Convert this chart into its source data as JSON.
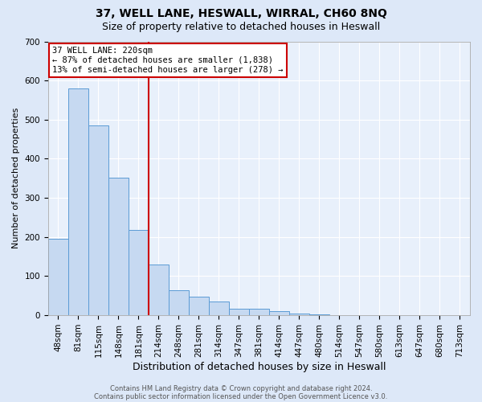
{
  "title": "37, WELL LANE, HESWALL, WIRRAL, CH60 8NQ",
  "subtitle": "Size of property relative to detached houses in Heswall",
  "xlabel": "Distribution of detached houses by size in Heswall",
  "ylabel": "Number of detached properties",
  "categories": [
    "48sqm",
    "81sqm",
    "115sqm",
    "148sqm",
    "181sqm",
    "214sqm",
    "248sqm",
    "281sqm",
    "314sqm",
    "347sqm",
    "381sqm",
    "414sqm",
    "447sqm",
    "480sqm",
    "514sqm",
    "547sqm",
    "580sqm",
    "613sqm",
    "647sqm",
    "680sqm",
    "713sqm"
  ],
  "values": [
    195,
    580,
    485,
    352,
    218,
    130,
    63,
    47,
    35,
    17,
    17,
    10,
    5,
    2,
    1,
    0,
    0,
    0,
    0,
    0,
    0
  ],
  "bar_color": "#c6d9f1",
  "bar_edge_color": "#5b9bd5",
  "vline_color": "#cc0000",
  "vline_index": 5,
  "ylim": [
    0,
    700
  ],
  "yticks": [
    0,
    100,
    200,
    300,
    400,
    500,
    600,
    700
  ],
  "annotation_line1": "37 WELL LANE: 220sqm",
  "annotation_line2": "← 87% of detached houses are smaller (1,838)",
  "annotation_line3": "13% of semi-detached houses are larger (278) →",
  "annotation_box_color": "#ffffff",
  "annotation_box_edge": "#cc0000",
  "footnote1": "Contains HM Land Registry data © Crown copyright and database right 2024.",
  "footnote2": "Contains public sector information licensed under the Open Government Licence v3.0.",
  "background_color": "#dde8f8",
  "plot_bg_color": "#e8f0fb",
  "grid_color": "#ffffff",
  "title_fontsize": 10,
  "subtitle_fontsize": 9,
  "xlabel_fontsize": 9,
  "ylabel_fontsize": 8,
  "tick_fontsize": 7.5,
  "annot_fontsize": 7.5,
  "footnote_fontsize": 6
}
